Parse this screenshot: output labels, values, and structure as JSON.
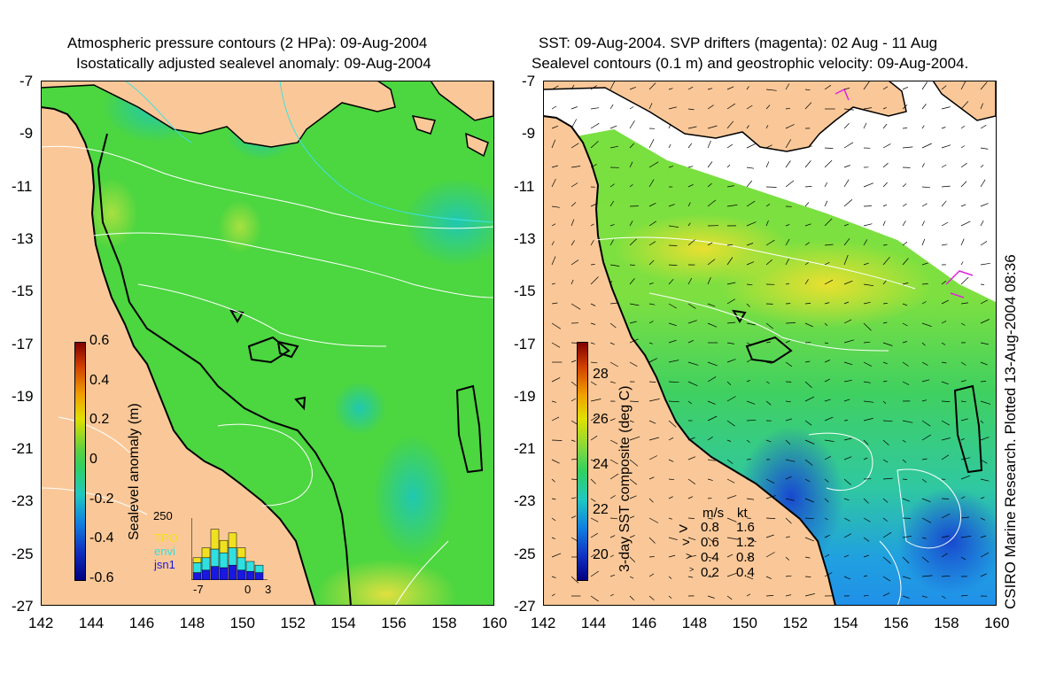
{
  "left_title": {
    "line1": "Atmospheric pressure contours (2 HPa): 09-Aug-2004",
    "line2": "Isostatically adjusted sealevel anomaly: 09-Aug-2004"
  },
  "right_title": {
    "line1": "SST: 09-Aug-2004. SVP drifters (magenta): 02 Aug - 11 Aug",
    "line2": "Sealevel contours (0.1 m) and geostrophic velocity: 09-Aug-2004."
  },
  "y_ticks": [
    "-7",
    "-9",
    "-11",
    "-13",
    "-15",
    "-17",
    "-19",
    "-21",
    "-23",
    "-25",
    "-27"
  ],
  "x_ticks": [
    "142",
    "144",
    "146",
    "148",
    "150",
    "152",
    "154",
    "156",
    "158",
    "160"
  ],
  "left_colorbar": {
    "label": "Sealevel anomaly (m)",
    "ticks": [
      "0.6",
      "0.4",
      "0.2",
      "0",
      "-0.2",
      "-0.4",
      "-0.6"
    ],
    "min": -0.6,
    "max": 0.6
  },
  "right_colorbar": {
    "label": "3-day SST composite (deg C)",
    "ticks": [
      "28",
      "26",
      "24",
      "22",
      "20"
    ],
    "min": 19,
    "max": 29.5
  },
  "inset": {
    "y_max_label": "250",
    "x_labels": [
      "-7",
      "0",
      "3"
    ],
    "legend": [
      "TPO",
      "envi",
      "jsn1"
    ],
    "legend_colors": [
      "#f0e020",
      "#30e0e0",
      "#1818e0"
    ],
    "bars": [
      {
        "jsn1": 30,
        "envi": 40,
        "tpo": 20
      },
      {
        "jsn1": 40,
        "envi": 50,
        "tpo": 40
      },
      {
        "jsn1": 55,
        "envi": 70,
        "tpo": 80
      },
      {
        "jsn1": 50,
        "envi": 60,
        "tpo": 50
      },
      {
        "jsn1": 60,
        "envi": 70,
        "tpo": 60
      },
      {
        "jsn1": 40,
        "envi": 50,
        "tpo": 40
      },
      {
        "jsn1": 35,
        "envi": 40,
        "tpo": 0
      },
      {
        "jsn1": 30,
        "envi": 30,
        "tpo": 0
      }
    ]
  },
  "velocity_scale": {
    "header_ms": "m/s",
    "header_kt": "kt",
    "rows": [
      {
        "ms": "0.8",
        "kt": "1.6"
      },
      {
        "ms": "0.6",
        "kt": "1.2"
      },
      {
        "ms": "0.4",
        "kt": "0.8"
      },
      {
        "ms": "0.2",
        "kt": "0.4"
      }
    ]
  },
  "credit": "CSIRO Marine Research. Plotted 13-Aug-2004 08:36",
  "colors": {
    "land": "#fac898",
    "sea_green": "#4cd640",
    "coast": "#000000",
    "contour": "#ffffff",
    "pressure_contour": "#40e0e0",
    "drifter": "#e020e0"
  }
}
